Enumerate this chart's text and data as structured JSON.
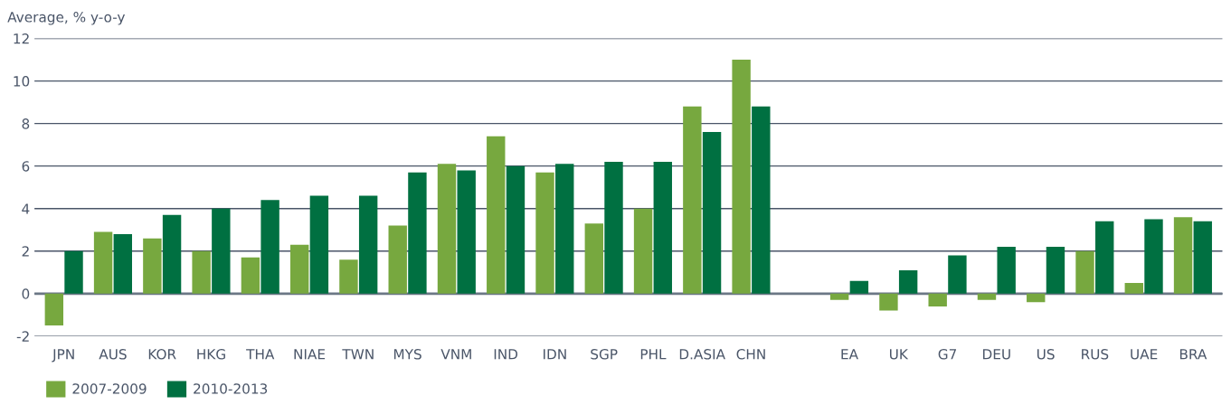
{
  "chart_data": {
    "type": "bar",
    "ylabel": "Average, % y-o-y",
    "categories": [
      "JPN",
      "AUS",
      "KOR",
      "HKG",
      "THA",
      "NIAE",
      "TWN",
      "MYS",
      "VNM",
      "IND",
      "IDN",
      "SGP",
      "PHL",
      "D.ASIA",
      "CHN",
      null,
      "EA",
      "UK",
      "G7",
      "DEU",
      "US",
      "RUS",
      "UAE",
      "BRA"
    ],
    "series": [
      {
        "name": "2007-2009",
        "color": "#77a83f",
        "values": [
          -1.5,
          2.9,
          2.6,
          2.0,
          1.7,
          2.3,
          1.6,
          3.2,
          6.1,
          7.4,
          5.7,
          3.3,
          4.0,
          8.8,
          11.0,
          null,
          -0.3,
          -0.8,
          -0.6,
          -0.3,
          -0.4,
          2.0,
          0.5,
          3.6
        ]
      },
      {
        "name": "2010-2013",
        "color": "#007041",
        "values": [
          2.0,
          2.8,
          3.7,
          4.0,
          4.4,
          4.6,
          4.6,
          5.7,
          5.8,
          6.0,
          6.1,
          6.2,
          6.2,
          7.6,
          8.8,
          null,
          0.6,
          1.1,
          1.8,
          2.2,
          2.2,
          3.4,
          3.5,
          3.4
        ]
      }
    ],
    "ylim": [
      -2,
      12
    ],
    "yticks": [
      -2,
      0,
      2,
      4,
      6,
      8,
      10,
      12
    ],
    "grid": "y",
    "legend": "bottom left"
  }
}
